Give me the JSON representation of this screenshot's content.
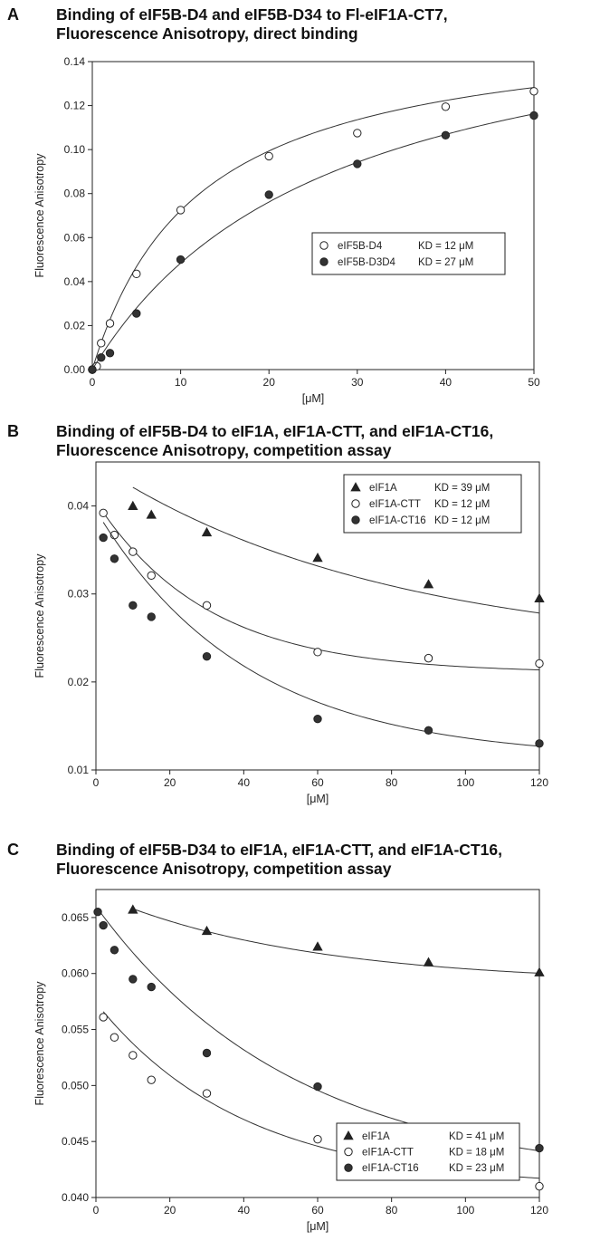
{
  "chart_data": [
    {
      "type": "scatter",
      "panel_label": "A",
      "title_lines": [
        "Binding of eIF5B-D4 and eIF5B-D34 to Fl-eIF1A-CT7,",
        "Fluorescence Anisotropy, direct binding"
      ],
      "xlabel": "[μM]",
      "ylabel": "Fluorescence Anisotropy",
      "xlim": [
        0,
        50
      ],
      "ylim": [
        0,
        0.14
      ],
      "xticks": [
        0,
        10,
        20,
        30,
        40,
        50
      ],
      "xtick_labels": [
        "0",
        "10",
        "20",
        "30",
        "40",
        "50"
      ],
      "yticks": [
        0,
        0.02,
        0.04,
        0.06,
        0.08,
        0.1,
        0.12,
        0.14
      ],
      "ytick_labels": [
        "0.00",
        "0.02",
        "0.04",
        "0.06",
        "0.08",
        "0.10",
        "0.12",
        "0.14"
      ],
      "grid": false,
      "legend_position": "center-right",
      "series": [
        {
          "name": "eIF5B-D4",
          "kd_text": "KD = 12 μM",
          "marker": "circle-open",
          "x": [
            0,
            0.5,
            1,
            2,
            5,
            10,
            20,
            30,
            40,
            50
          ],
          "y": [
            0.0,
            0.0015,
            0.012,
            0.021,
            0.0435,
            0.0725,
            0.097,
            0.1075,
            0.1195,
            0.1265
          ],
          "fit": {
            "kind": "binding",
            "bmax": 0.159,
            "kd": 12
          }
        },
        {
          "name": "eIF5B-D3D4",
          "kd_text": "KD = 27 μM",
          "marker": "circle-filled",
          "x": [
            0,
            1,
            2,
            5,
            10,
            20,
            30,
            40,
            50
          ],
          "y": [
            0.0,
            0.0055,
            0.0075,
            0.0255,
            0.05,
            0.0795,
            0.0935,
            0.1065,
            0.1155
          ],
          "fit": {
            "kind": "binding",
            "bmax": 0.179,
            "kd": 27
          }
        }
      ]
    },
    {
      "type": "scatter",
      "panel_label": "B",
      "title_lines": [
        "Binding of eIF5B-D4 to eIF1A, eIF1A-CTT, and eIF1A-CT16,",
        "Fluorescence Anisotropy, competition assay"
      ],
      "xlabel": "[μM]",
      "ylabel": "Fluorescence Anisotropy",
      "xlim": [
        0,
        120
      ],
      "ylim": [
        0.01,
        0.045
      ],
      "xticks": [
        0,
        20,
        40,
        60,
        80,
        100,
        120
      ],
      "xtick_labels": [
        "0",
        "20",
        "40",
        "60",
        "80",
        "100",
        "120"
      ],
      "yticks": [
        0.01,
        0.02,
        0.03,
        0.04
      ],
      "ytick_labels": [
        "0.01",
        "0.02",
        "0.03",
        "0.04"
      ],
      "grid": false,
      "legend_position": "top-right",
      "series": [
        {
          "name": "eIF1A",
          "kd_text": "KD = 39 μM",
          "marker": "triangle-filled",
          "x": [
            10,
            15,
            30,
            60,
            90,
            120
          ],
          "y": [
            0.04,
            0.039,
            0.037,
            0.0341,
            0.0311,
            0.0295
          ],
          "fit": {
            "kind": "decay",
            "bottom": 0.0232,
            "amp": 0.0215,
            "k": 0.0128,
            "xmin": 10,
            "xmax": 120
          }
        },
        {
          "name": "eIF1A-CTT",
          "kd_text": "KD = 12 μM",
          "marker": "circle-open",
          "x": [
            2,
            5,
            10,
            15,
            30,
            60,
            90,
            120
          ],
          "y": [
            0.0392,
            0.0367,
            0.0348,
            0.0321,
            0.0287,
            0.0234,
            0.0227,
            0.0221
          ],
          "fit": {
            "kind": "decay",
            "bottom": 0.021,
            "amp": 0.0195,
            "k": 0.033,
            "xmin": 2,
            "xmax": 120
          }
        },
        {
          "name": "eIF1A-CT16",
          "kd_text": "KD = 12 μM",
          "marker": "circle-filled",
          "x": [
            2,
            5,
            10,
            15,
            30,
            60,
            90,
            120
          ],
          "y": [
            0.0364,
            0.034,
            0.0287,
            0.0274,
            0.0229,
            0.0158,
            0.0145,
            0.013
          ],
          "fit": {
            "kind": "decay",
            "bottom": 0.0112,
            "amp": 0.0283,
            "k": 0.0245,
            "xmin": 2,
            "xmax": 120
          }
        }
      ]
    },
    {
      "type": "scatter",
      "panel_label": "C",
      "title_lines": [
        "Binding of eIF5B-D34 to eIF1A, eIF1A-CTT, and eIF1A-CT16,",
        "Fluorescence Anisotropy, competition assay"
      ],
      "xlabel": "[μM]",
      "ylabel": "Fluorescence Anisotropy",
      "xlim": [
        0,
        120
      ],
      "ylim": [
        0.04,
        0.0675
      ],
      "xticks": [
        0,
        20,
        40,
        60,
        80,
        100,
        120
      ],
      "xtick_labels": [
        "0",
        "20",
        "40",
        "60",
        "80",
        "100",
        "120"
      ],
      "yticks": [
        0.04,
        0.045,
        0.05,
        0.055,
        0.06,
        0.065
      ],
      "ytick_labels": [
        "0.040",
        "0.045",
        "0.050",
        "0.055",
        "0.060",
        "0.065"
      ],
      "grid": false,
      "legend_position": "center-right",
      "series": [
        {
          "name": "eIF1A",
          "kd_text": "KD = 41 μM",
          "marker": "triangle-filled",
          "x": [
            10,
            30,
            60,
            90,
            120
          ],
          "y": [
            0.0657,
            0.0638,
            0.0624,
            0.061,
            0.0601
          ],
          "fit": {
            "kind": "decay",
            "bottom": 0.0591,
            "amp": 0.008,
            "k": 0.018,
            "xmin": 10,
            "xmax": 120
          }
        },
        {
          "name": "eIF1A-CTT",
          "kd_text": "KD = 18 μM",
          "marker": "circle-open",
          "x": [
            2,
            5,
            10,
            15,
            30,
            60,
            90,
            120
          ],
          "y": [
            0.0561,
            0.0543,
            0.0527,
            0.0505,
            0.0493,
            0.0452,
            0.0428,
            0.041
          ],
          "fit": {
            "kind": "decay",
            "bottom": 0.0409,
            "amp": 0.0165,
            "k": 0.025,
            "xmin": 2,
            "xmax": 120
          }
        },
        {
          "name": "eIF1A-CT16",
          "kd_text": "KD = 23 μM",
          "marker": "circle-filled",
          "x": [
            0.5,
            2,
            5,
            10,
            15,
            30,
            60,
            90,
            120
          ],
          "y": [
            0.0655,
            0.0643,
            0.0621,
            0.0595,
            0.0588,
            0.0529,
            0.0499,
            0.045,
            0.0444
          ],
          "fit": {
            "kind": "decay",
            "bottom": 0.0415,
            "amp": 0.0245,
            "k": 0.0185,
            "xmin": 0.5,
            "xmax": 120
          }
        }
      ]
    }
  ]
}
